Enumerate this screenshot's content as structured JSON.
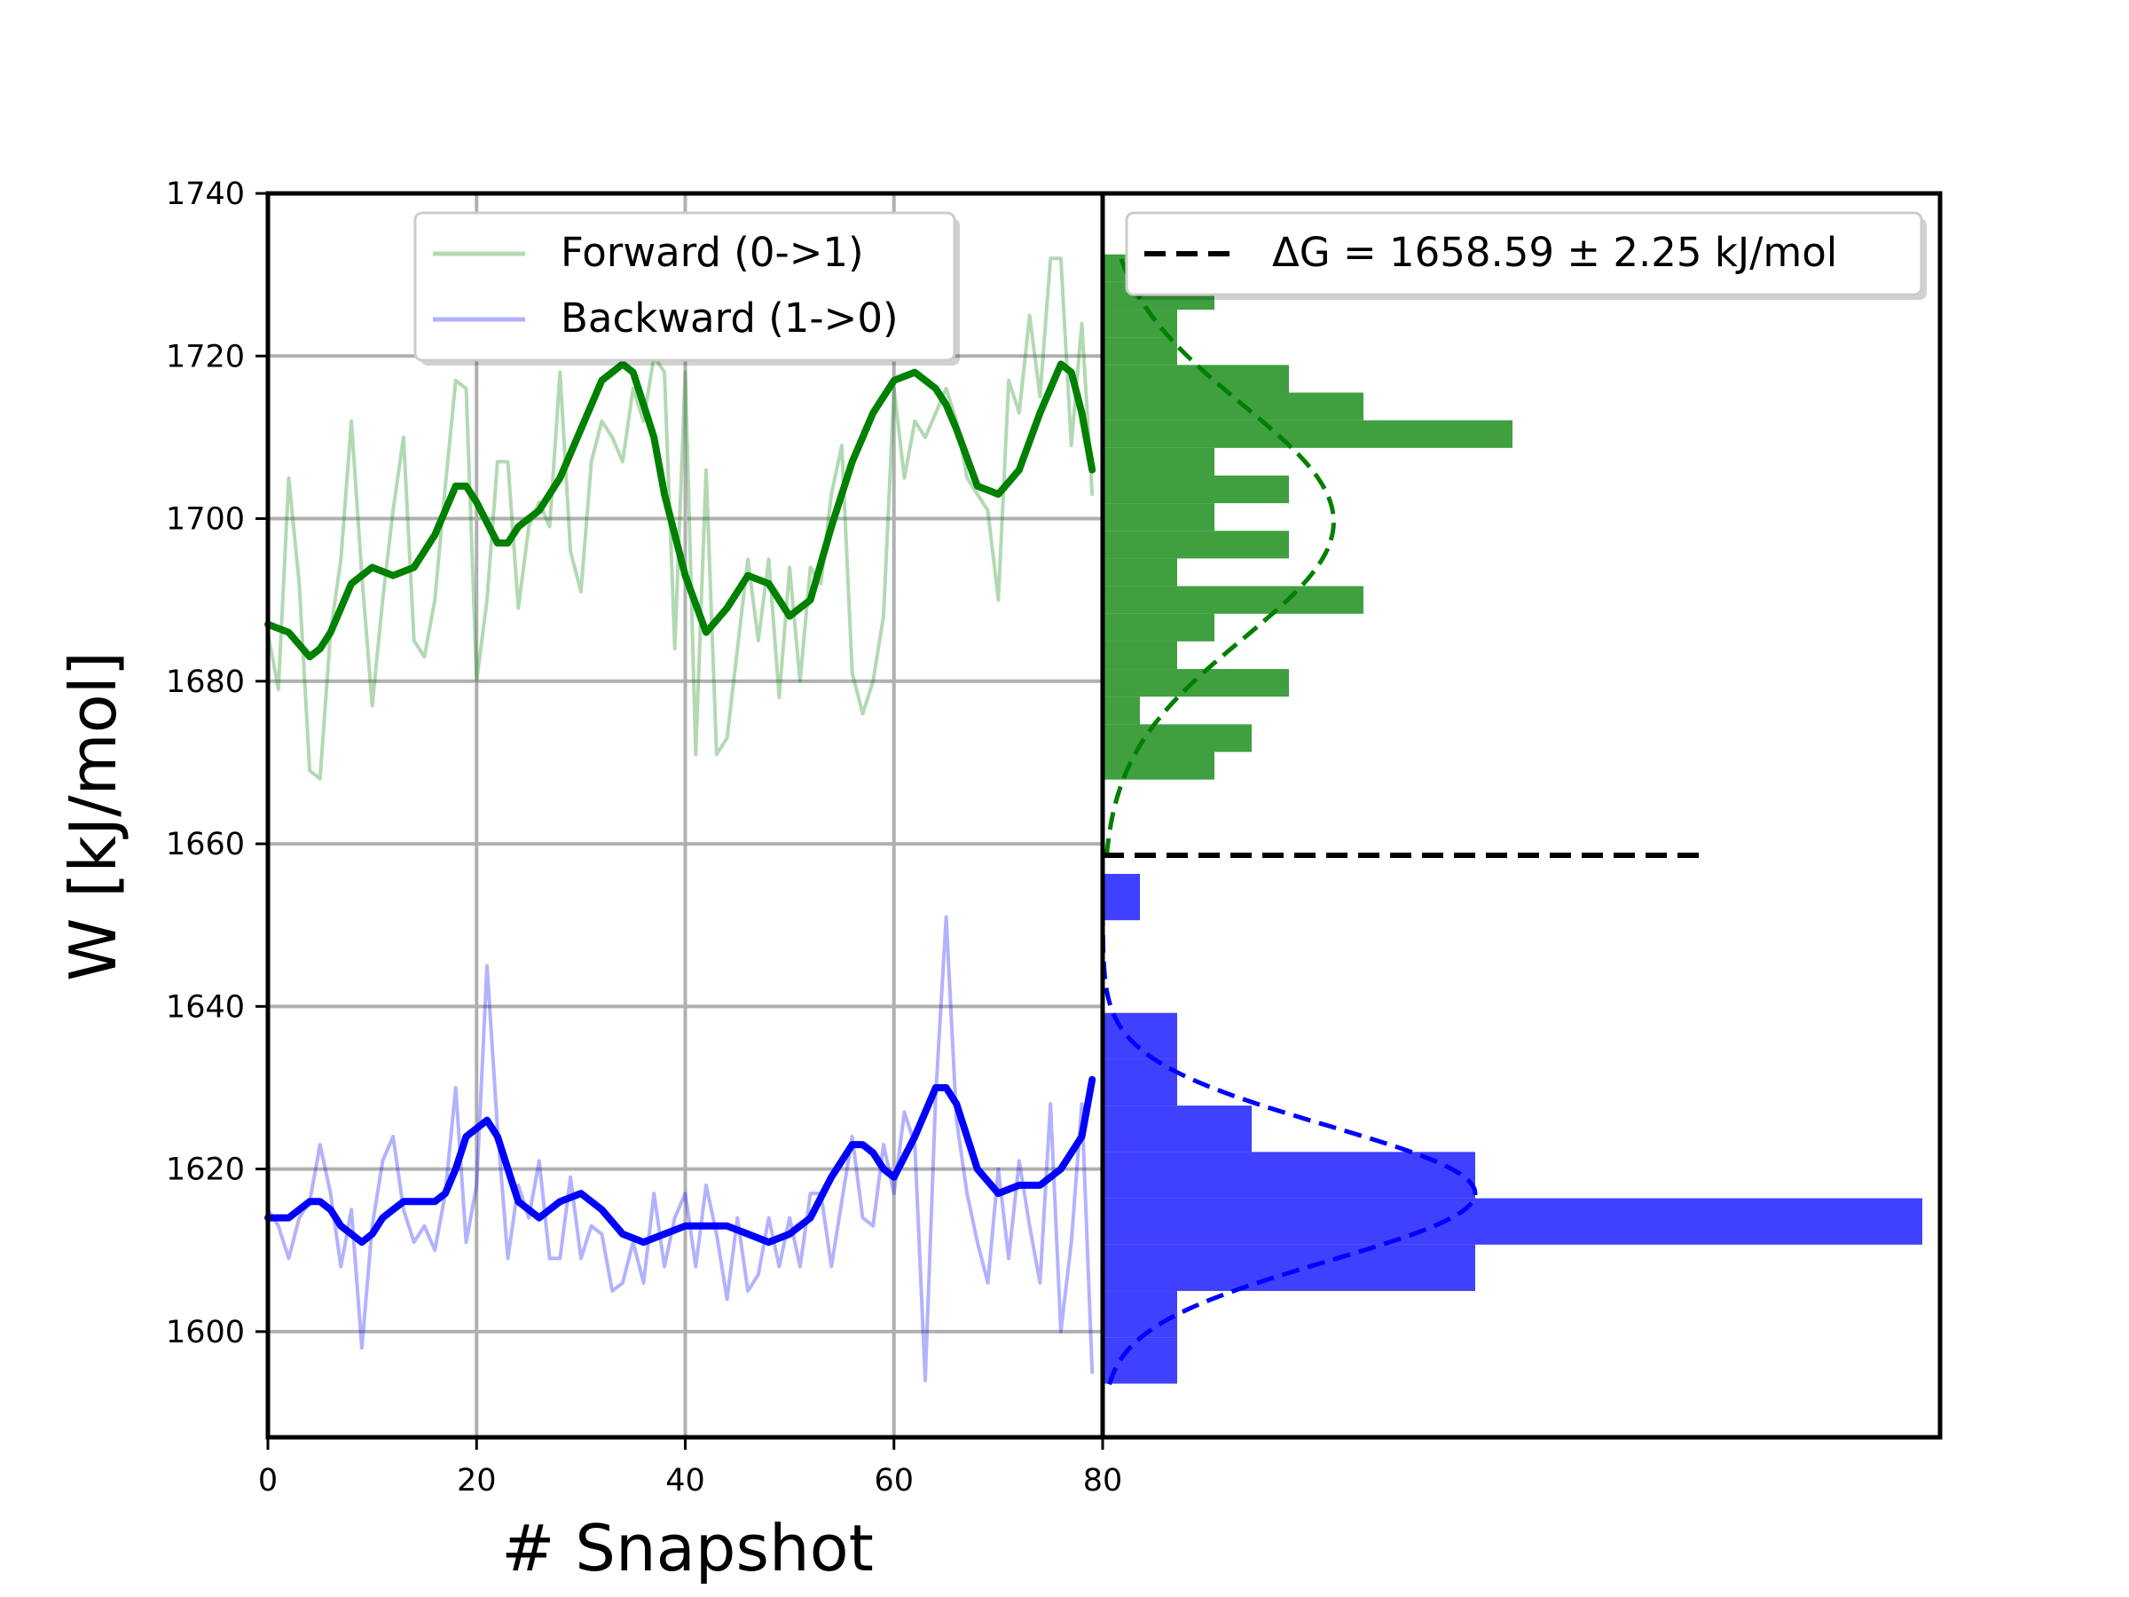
{
  "chart_data": [
    {
      "type": "line",
      "panel": "left",
      "xlabel": "# Snapshot",
      "ylabel": "W [kJ/mol]",
      "xlim": [
        0,
        80
      ],
      "ylim": [
        1587,
        1740
      ],
      "xticks": [
        0,
        20,
        40,
        60,
        80
      ],
      "yticks": [
        1600,
        1620,
        1640,
        1660,
        1680,
        1700,
        1720,
        1740
      ],
      "grid": true,
      "legend": {
        "placement": "top-center",
        "entries": [
          "Forward (0->1)",
          "Backward (1->0)"
        ]
      },
      "series": [
        {
          "name": "Forward (0->1)",
          "style": "raw",
          "color": "#008000",
          "x": [
            0,
            1,
            2,
            3,
            4,
            5,
            6,
            7,
            8,
            9,
            10,
            11,
            12,
            13,
            14,
            15,
            16,
            17,
            18,
            19,
            20,
            21,
            22,
            23,
            24,
            25,
            26,
            27,
            28,
            29,
            30,
            31,
            32,
            33,
            34,
            35,
            36,
            37,
            38,
            39,
            40,
            41,
            42,
            43,
            44,
            45,
            46,
            47,
            48,
            49,
            50,
            51,
            52,
            53,
            54,
            55,
            56,
            57,
            58,
            59,
            60,
            61,
            62,
            63,
            64,
            65,
            66,
            67,
            68,
            69,
            70,
            71,
            72,
            73,
            74,
            75,
            76,
            77,
            78,
            79
          ],
          "values": [
            1686,
            1679,
            1705,
            1692,
            1669,
            1668,
            1686,
            1695,
            1712,
            1693,
            1677,
            1690,
            1701,
            1710,
            1685,
            1683,
            1690,
            1704,
            1717,
            1716,
            1680,
            1690,
            1707,
            1707,
            1689,
            1699,
            1702,
            1699,
            1718,
            1696,
            1691,
            1707,
            1712,
            1710,
            1707,
            1716,
            1712,
            1720,
            1718,
            1684,
            1718,
            1671,
            1706,
            1671,
            1673,
            1684,
            1695,
            1685,
            1695,
            1678,
            1694,
            1680,
            1694,
            1692,
            1703,
            1709,
            1681,
            1676,
            1680,
            1688,
            1716,
            1705,
            1712,
            1710,
            1713,
            1716,
            1712,
            1705,
            1703,
            1701,
            1690,
            1717,
            1713,
            1725,
            1715,
            1732,
            1732,
            1709,
            1724,
            1703
          ]
        },
        {
          "name": "Forward (0->1)",
          "style": "smoothed",
          "color": "#008000",
          "x": [
            0,
            2,
            4,
            5,
            6,
            8,
            10,
            12,
            14,
            16,
            18,
            19,
            20,
            22,
            23,
            24,
            26,
            28,
            30,
            32,
            34,
            35,
            36,
            37,
            38,
            40,
            42,
            44,
            46,
            48,
            50,
            52,
            54,
            56,
            58,
            60,
            62,
            64,
            65,
            66,
            68,
            70,
            72,
            74,
            76,
            77,
            78,
            79
          ],
          "values": [
            1687,
            1686,
            1683,
            1684,
            1686,
            1692,
            1694,
            1693,
            1694,
            1698,
            1704,
            1704,
            1702,
            1697,
            1697,
            1699,
            1701,
            1705,
            1711,
            1717,
            1719,
            1718,
            1714,
            1710,
            1703,
            1693,
            1686,
            1689,
            1693,
            1692,
            1688,
            1690,
            1699,
            1707,
            1713,
            1717,
            1718,
            1716,
            1714,
            1711,
            1704,
            1703,
            1706,
            1713,
            1719,
            1718,
            1713,
            1706
          ]
        },
        {
          "name": "Backward (1->0)",
          "style": "raw",
          "color": "#0000ff",
          "x": [
            0,
            1,
            2,
            3,
            4,
            5,
            6,
            7,
            8,
            9,
            10,
            11,
            12,
            13,
            14,
            15,
            16,
            17,
            18,
            19,
            20,
            21,
            22,
            23,
            24,
            25,
            26,
            27,
            28,
            29,
            30,
            31,
            32,
            33,
            34,
            35,
            36,
            37,
            38,
            39,
            40,
            41,
            42,
            43,
            44,
            45,
            46,
            47,
            48,
            49,
            50,
            51,
            52,
            53,
            54,
            55,
            56,
            57,
            58,
            59,
            60,
            61,
            62,
            63,
            64,
            65,
            66,
            67,
            68,
            69,
            70,
            71,
            72,
            73,
            74,
            75,
            76,
            77,
            78,
            79
          ],
          "values": [
            1615,
            1613,
            1609,
            1614,
            1616,
            1623,
            1617,
            1608,
            1615,
            1598,
            1613,
            1621,
            1624,
            1615,
            1611,
            1613,
            1610,
            1617,
            1630,
            1611,
            1618,
            1645,
            1625,
            1609,
            1618,
            1614,
            1621,
            1609,
            1609,
            1619,
            1609,
            1613,
            1612,
            1605,
            1606,
            1611,
            1606,
            1617,
            1608,
            1614,
            1617,
            1608,
            1618,
            1612,
            1604,
            1614,
            1605,
            1607,
            1614,
            1608,
            1614,
            1608,
            1617,
            1617,
            1608,
            1616,
            1624,
            1614,
            1613,
            1623,
            1617,
            1627,
            1623,
            1594,
            1629,
            1651,
            1626,
            1617,
            1611,
            1606,
            1620,
            1609,
            1621,
            1613,
            1606,
            1628,
            1600,
            1611,
            1628,
            1595
          ]
        },
        {
          "name": "Backward (1->0)",
          "style": "smoothed",
          "color": "#0000ff",
          "x": [
            0,
            1,
            2,
            3,
            4,
            5,
            6,
            7,
            8,
            9,
            10,
            11,
            12,
            13,
            14,
            16,
            17,
            18,
            19,
            20,
            21,
            22,
            23,
            24,
            25,
            26,
            27,
            28,
            30,
            32,
            34,
            36,
            38,
            40,
            42,
            44,
            46,
            48,
            50,
            52,
            54,
            56,
            57,
            58,
            59,
            60,
            62,
            64,
            65,
            66,
            67,
            68,
            70,
            72,
            74,
            76,
            78,
            79
          ],
          "values": [
            1614,
            1614,
            1614,
            1615,
            1616,
            1616,
            1615,
            1613,
            1612,
            1611,
            1612,
            1614,
            1615,
            1616,
            1616,
            1616,
            1617,
            1620,
            1624,
            1625,
            1626,
            1624,
            1620,
            1616,
            1615,
            1614,
            1615,
            1616,
            1617,
            1615,
            1612,
            1611,
            1612,
            1613,
            1613,
            1613,
            1612,
            1611,
            1612,
            1614,
            1619,
            1623,
            1623,
            1622,
            1620,
            1619,
            1624,
            1630,
            1630,
            1628,
            1624,
            1620,
            1617,
            1618,
            1618,
            1620,
            1624,
            1631
          ]
        }
      ]
    },
    {
      "type": "bar",
      "orientation": "horizontal",
      "panel": "right",
      "ylim": [
        1587,
        1740
      ],
      "legend": {
        "placement": "top-right",
        "entries": [
          "ΔG = 1658.59 ± 2.25 kJ/mol"
        ]
      },
      "delta_g": {
        "label": "ΔG = 1658.59 ± 2.25 kJ/mol",
        "value": 1658.59,
        "color": "#000000",
        "extent": 16
      },
      "series": [
        {
          "name": "Forward (0->1)",
          "color": "#008000",
          "bin_width": 3.4,
          "bins": [
            1667.9,
            1671.3,
            1674.7,
            1678.1,
            1681.5,
            1684.9,
            1688.3,
            1691.7,
            1695.1,
            1698.5,
            1701.9,
            1705.3,
            1708.7,
            1712.1,
            1715.5,
            1718.9,
            1722.3,
            1725.7,
            1729.1
          ],
          "counts": [
            3,
            4,
            1,
            5,
            2,
            3,
            7,
            2,
            5,
            3,
            5,
            3,
            11,
            7,
            5,
            2,
            2,
            3,
            1
          ],
          "fit": {
            "mean": 1699.6,
            "std": 14.4,
            "peak": 6.2,
            "range": [
              1658.5,
              1732
            ]
          }
        },
        {
          "name": "Backward (1->0)",
          "color": "#0000ff",
          "bin_width": 5.7,
          "bins": [
            1593.6,
            1599.3,
            1605.0,
            1610.7,
            1616.4,
            1622.1,
            1627.8,
            1633.5,
            1639.2,
            1644.9,
            1650.6
          ],
          "counts": [
            2,
            2,
            10,
            22,
            10,
            4,
            2,
            2,
            0,
            0,
            1
          ],
          "fit": {
            "mean": 1617.0,
            "std": 8.3,
            "peak": 10.0,
            "range": [
              1593.5,
              1652
            ]
          }
        }
      ]
    }
  ]
}
